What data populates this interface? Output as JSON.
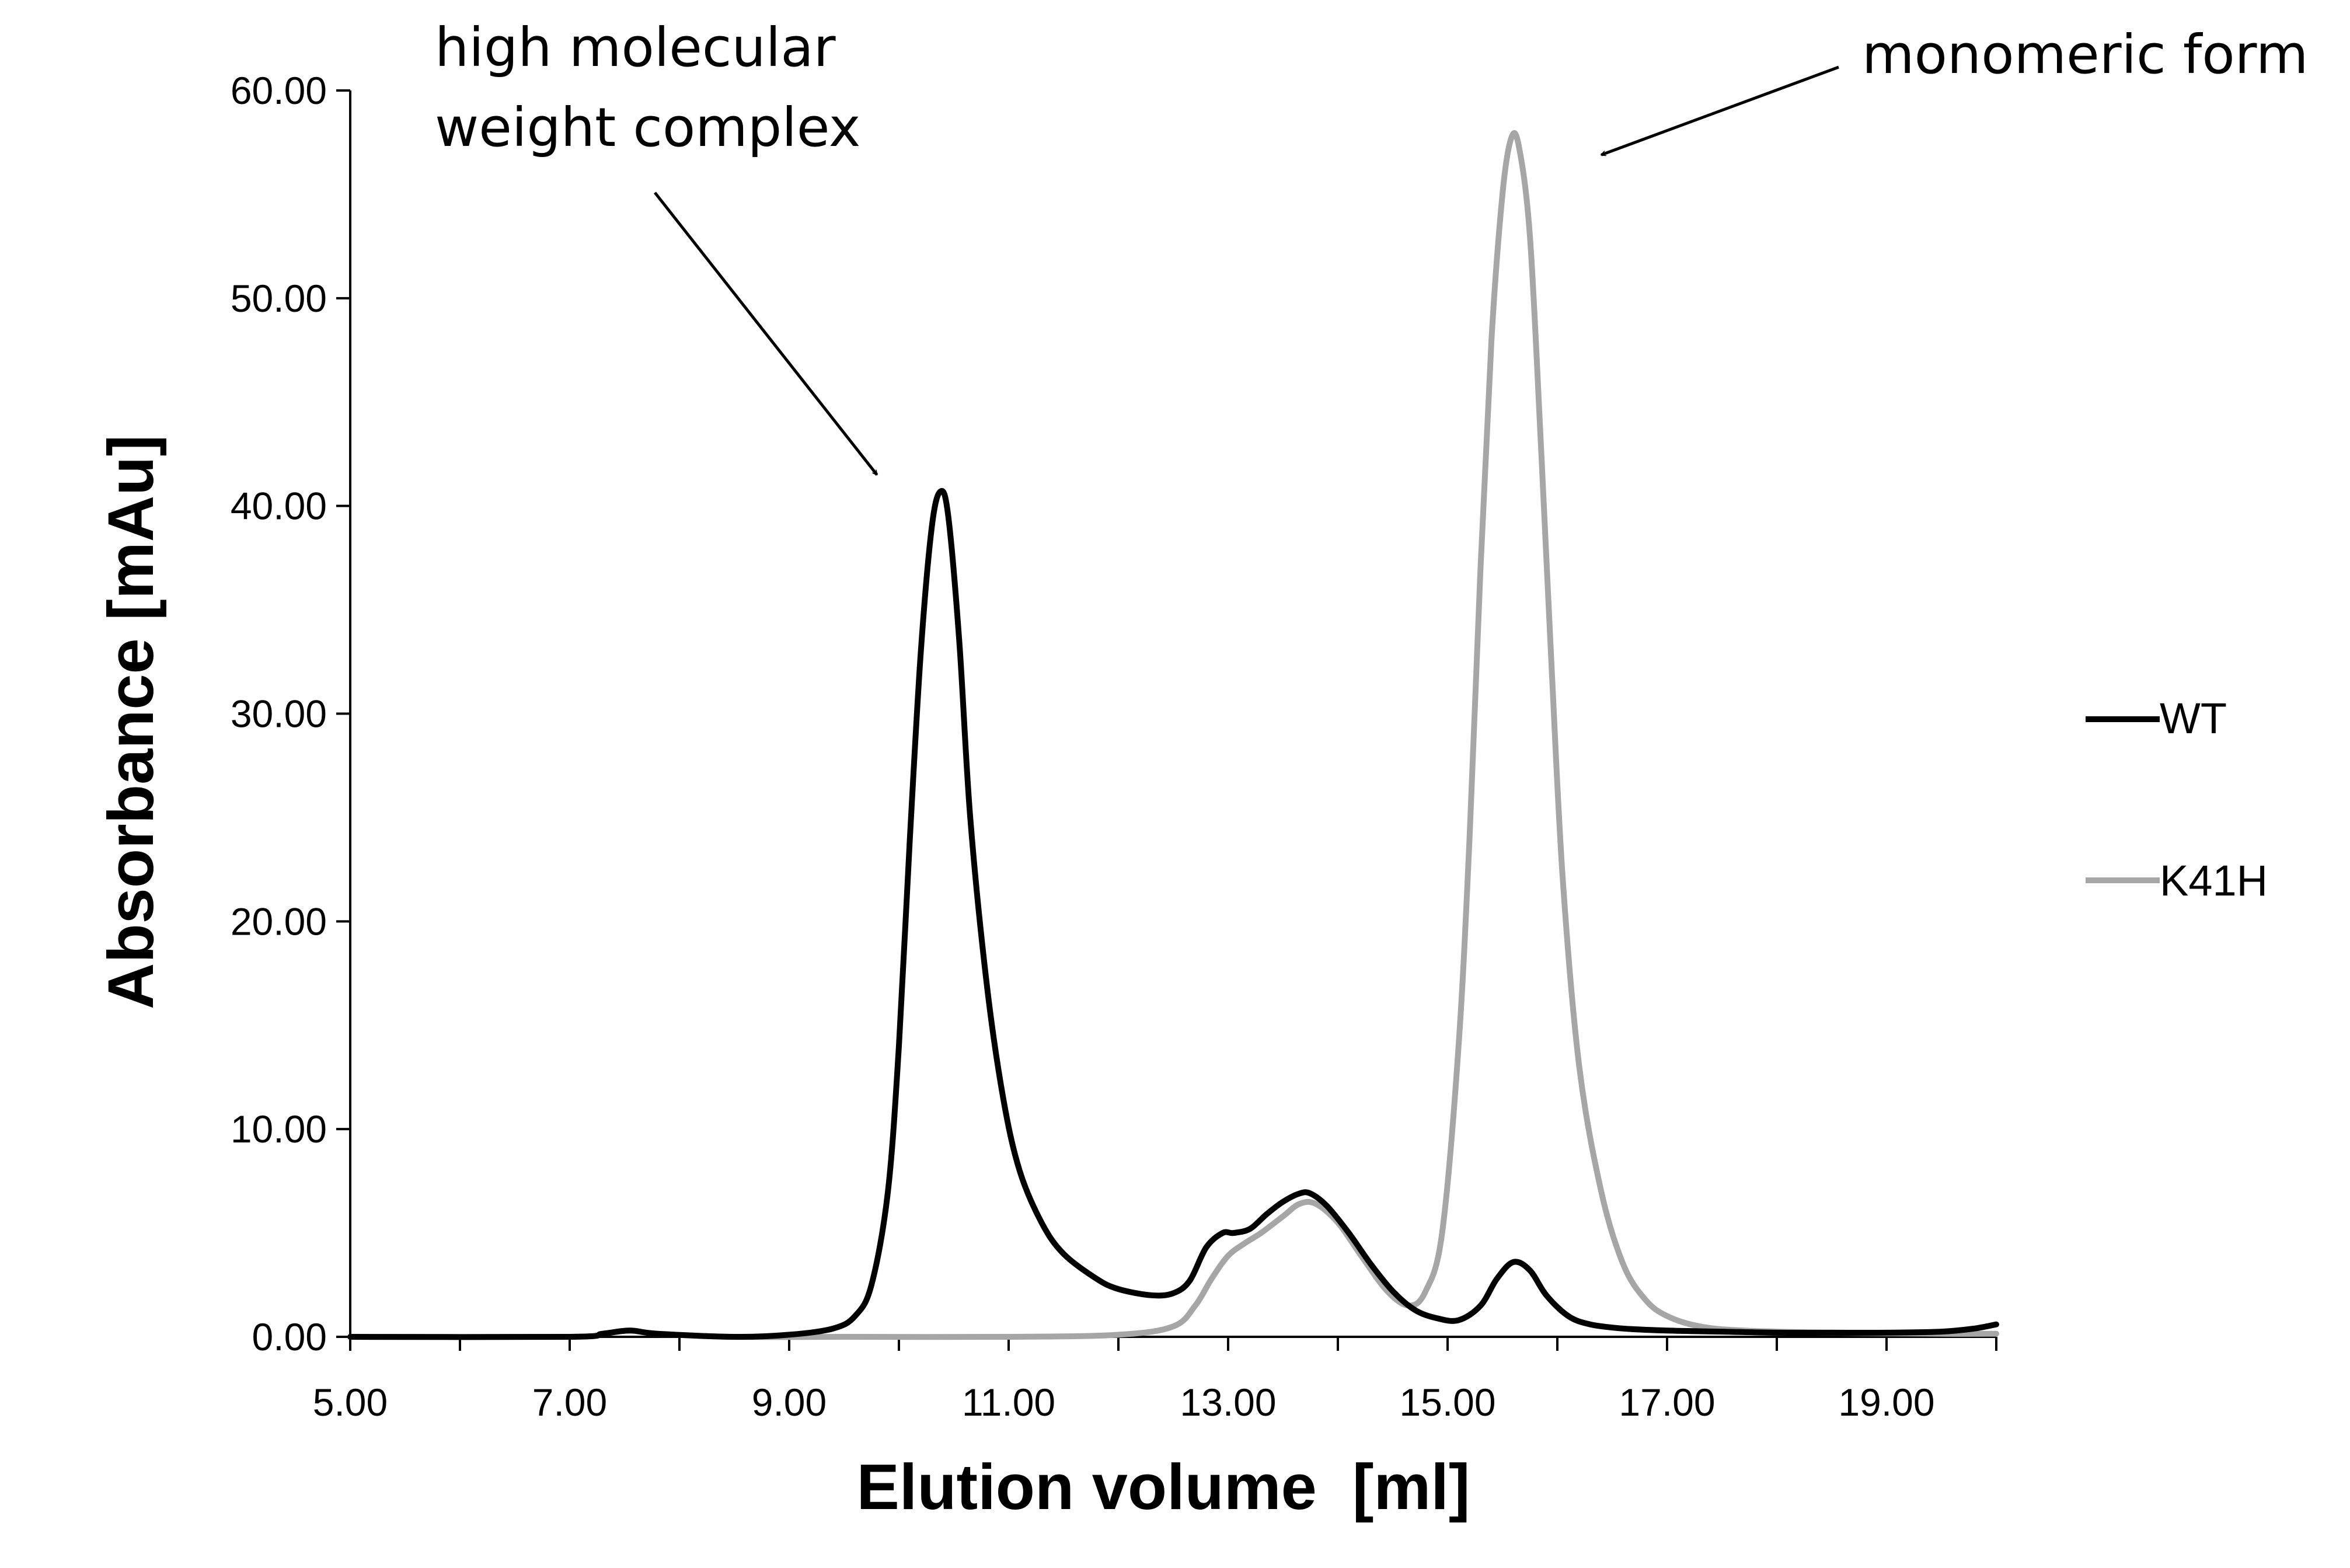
{
  "chart_data": {
    "type": "line",
    "title": "",
    "xlabel": "Elution volume  [ml]",
    "ylabel": "Absorbance [mAu]",
    "xlim": [
      5,
      20
    ],
    "ylim": [
      0,
      60
    ],
    "x_ticks": [
      5,
      7,
      9,
      11,
      13,
      15,
      17,
      19
    ],
    "x_tick_labels": [
      "5.00",
      "7.00",
      "9.00",
      "11.00",
      "13.00",
      "15.00",
      "17.00",
      "19.00"
    ],
    "y_ticks": [
      0,
      10,
      20,
      30,
      40,
      50,
      60
    ],
    "y_tick_labels": [
      "0.00",
      "10.00",
      "20.00",
      "30.00",
      "40.00",
      "50.00",
      "60.00"
    ],
    "grid": false,
    "legend_position": "right",
    "series": [
      {
        "name": "WT",
        "color": "#000000",
        "x": [
          5.0,
          7.0,
          7.3,
          7.55,
          7.8,
          8.5,
          9.0,
          9.4,
          9.6,
          9.75,
          9.9,
          10.0,
          10.1,
          10.2,
          10.3,
          10.38,
          10.45,
          10.55,
          10.65,
          10.8,
          10.95,
          11.1,
          11.3,
          11.5,
          11.8,
          12.0,
          12.3,
          12.5,
          12.65,
          12.8,
          12.95,
          13.05,
          13.2,
          13.35,
          13.5,
          13.65,
          13.75,
          13.9,
          14.1,
          14.3,
          14.5,
          14.7,
          14.9,
          15.1,
          15.3,
          15.45,
          15.6,
          15.75,
          15.9,
          16.1,
          16.3,
          16.6,
          17.0,
          17.5,
          18.0,
          18.5,
          19.0,
          19.5,
          19.8,
          20.0
        ],
        "y": [
          0.0,
          0.0,
          0.15,
          0.3,
          0.15,
          0.0,
          0.1,
          0.4,
          1.0,
          2.5,
          7.0,
          14.0,
          24.0,
          33.0,
          39.0,
          40.7,
          39.5,
          33.5,
          25.0,
          17.0,
          11.5,
          8.0,
          5.5,
          4.0,
          2.8,
          2.3,
          2.0,
          2.1,
          2.7,
          4.3,
          5.0,
          5.0,
          5.2,
          5.9,
          6.5,
          6.9,
          6.9,
          6.3,
          5.0,
          3.5,
          2.2,
          1.3,
          0.9,
          0.8,
          1.5,
          2.8,
          3.6,
          3.2,
          2.0,
          1.0,
          0.6,
          0.4,
          0.3,
          0.25,
          0.2,
          0.2,
          0.2,
          0.25,
          0.4,
          0.6
        ]
      },
      {
        "name": "K41H",
        "color": "#a6a6a6",
        "x": [
          5.0,
          7.0,
          7.3,
          7.55,
          7.8,
          8.5,
          9.5,
          11.0,
          12.0,
          12.5,
          12.7,
          12.85,
          13.0,
          13.15,
          13.3,
          13.5,
          13.65,
          13.8,
          14.0,
          14.2,
          14.45,
          14.65,
          14.8,
          14.95,
          15.1,
          15.2,
          15.3,
          15.4,
          15.5,
          15.58,
          15.65,
          15.75,
          15.85,
          15.95,
          16.05,
          16.2,
          16.4,
          16.6,
          16.8,
          17.0,
          17.3,
          17.7,
          18.5,
          19.5,
          20.0
        ],
        "y": [
          0.0,
          0.0,
          0.15,
          0.3,
          0.15,
          0.0,
          0.0,
          0.0,
          0.1,
          0.5,
          1.5,
          2.8,
          3.9,
          4.5,
          5.0,
          5.8,
          6.4,
          6.4,
          5.5,
          4.0,
          2.2,
          1.5,
          2.2,
          5.0,
          14.0,
          24.0,
          37.0,
          48.0,
          55.0,
          57.7,
          57.3,
          53.0,
          43.0,
          32.0,
          22.0,
          13.0,
          7.0,
          3.5,
          1.8,
          1.0,
          0.5,
          0.3,
          0.2,
          0.15,
          0.15
        ]
      }
    ],
    "annotations": [
      {
        "lines": [
          "high molecular",
          "weight complex"
        ],
        "target": [
          9.8,
          41.5
        ]
      },
      {
        "lines": [
          "monomeric form"
        ],
        "target": [
          16.4,
          56.9
        ]
      }
    ]
  }
}
